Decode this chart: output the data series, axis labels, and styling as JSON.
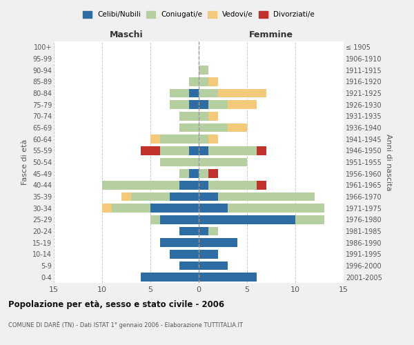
{
  "age_groups": [
    "0-4",
    "5-9",
    "10-14",
    "15-19",
    "20-24",
    "25-29",
    "30-34",
    "35-39",
    "40-44",
    "45-49",
    "50-54",
    "55-59",
    "60-64",
    "65-69",
    "70-74",
    "75-79",
    "80-84",
    "85-89",
    "90-94",
    "95-99",
    "100+"
  ],
  "birth_years": [
    "2001-2005",
    "1996-2000",
    "1991-1995",
    "1986-1990",
    "1981-1985",
    "1976-1980",
    "1971-1975",
    "1966-1970",
    "1961-1965",
    "1956-1960",
    "1951-1955",
    "1946-1950",
    "1941-1945",
    "1936-1940",
    "1931-1935",
    "1926-1930",
    "1921-1925",
    "1916-1920",
    "1911-1915",
    "1906-1910",
    "≤ 1905"
  ],
  "maschi": {
    "celibi": [
      6,
      2,
      3,
      4,
      2,
      4,
      5,
      3,
      2,
      1,
      0,
      1,
      0,
      0,
      0,
      1,
      1,
      0,
      0,
      0,
      0
    ],
    "coniugati": [
      0,
      0,
      0,
      0,
      0,
      1,
      4,
      4,
      8,
      1,
      4,
      3,
      4,
      2,
      2,
      2,
      2,
      1,
      0,
      0,
      0
    ],
    "vedovi": [
      0,
      0,
      0,
      0,
      0,
      0,
      1,
      1,
      0,
      0,
      0,
      0,
      1,
      0,
      0,
      0,
      0,
      0,
      0,
      0,
      0
    ],
    "divorziati": [
      0,
      0,
      0,
      0,
      0,
      0,
      0,
      0,
      0,
      0,
      0,
      2,
      0,
      0,
      0,
      0,
      0,
      0,
      0,
      0,
      0
    ]
  },
  "femmine": {
    "nubili": [
      6,
      3,
      2,
      4,
      1,
      10,
      3,
      2,
      1,
      0,
      0,
      1,
      0,
      0,
      0,
      1,
      0,
      0,
      0,
      0,
      0
    ],
    "coniugate": [
      0,
      0,
      0,
      0,
      1,
      3,
      10,
      10,
      5,
      1,
      5,
      5,
      1,
      3,
      1,
      2,
      2,
      1,
      1,
      0,
      0
    ],
    "vedove": [
      0,
      0,
      0,
      0,
      0,
      0,
      0,
      0,
      0,
      0,
      0,
      0,
      1,
      2,
      1,
      3,
      5,
      1,
      0,
      0,
      0
    ],
    "divorziate": [
      0,
      0,
      0,
      0,
      0,
      0,
      0,
      0,
      1,
      1,
      0,
      1,
      0,
      0,
      0,
      0,
      0,
      0,
      0,
      0,
      0
    ]
  },
  "colors": {
    "celibi_nubili": "#2e6da4",
    "coniugati": "#b5cfa0",
    "vedovi": "#f5c97a",
    "divorziati": "#c0322b"
  },
  "xlim": 15,
  "title": "Popolazione per età, sesso e stato civile - 2006",
  "subtitle": "COMUNE DI DARÈ (TN) - Dati ISTAT 1° gennaio 2006 - Elaborazione TUTTITALIA.IT",
  "ylabel_left": "Fasce di età",
  "ylabel_right": "Anni di nascita",
  "xlabel_maschi": "Maschi",
  "xlabel_femmine": "Femmine",
  "legend_labels": [
    "Celibi/Nubili",
    "Coniugati/e",
    "Vedovi/e",
    "Divorziati/e"
  ],
  "background_color": "#f0f0f0",
  "plot_bg_color": "#ffffff"
}
